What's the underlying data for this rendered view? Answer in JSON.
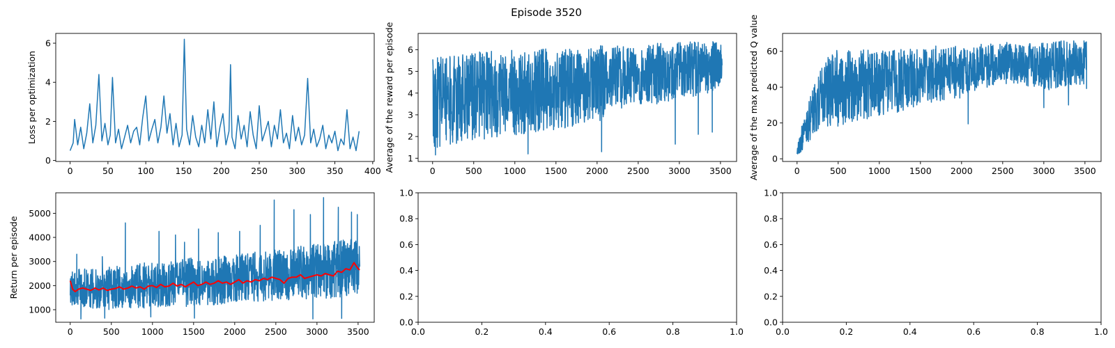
{
  "figure": {
    "suptitle": "Episode 3520"
  },
  "colors": {
    "series": "#1f77b4",
    "rolling_mean": "#ff0000",
    "axes": "#000000"
  },
  "chart_data": [
    {
      "id": "loss",
      "type": "line",
      "title": "",
      "xlabel": "",
      "ylabel": "Loss per optimization",
      "xlim": [
        -19,
        402
      ],
      "ylim": [
        -0.05,
        6.5
      ],
      "xticks": [
        0,
        50,
        100,
        150,
        200,
        250,
        300,
        350,
        400
      ],
      "yticks": [
        0,
        2,
        4,
        6
      ],
      "series": [
        {
          "x": [
            0,
            4,
            6,
            10,
            14,
            18,
            22,
            26,
            30,
            34,
            38,
            42,
            46,
            50,
            53,
            56,
            60,
            64,
            68,
            72,
            76,
            80,
            84,
            88,
            92,
            96,
            100,
            104,
            108,
            112,
            116,
            120,
            124,
            128,
            132,
            136,
            140,
            144,
            148,
            151,
            154,
            158,
            162,
            166,
            170,
            174,
            178,
            182,
            186,
            190,
            194,
            198,
            202,
            206,
            210,
            212,
            214,
            218,
            222,
            226,
            230,
            234,
            238,
            242,
            246,
            250,
            254,
            258,
            262,
            266,
            270,
            274,
            278,
            282,
            286,
            290,
            294,
            298,
            302,
            306,
            310,
            314,
            318,
            322,
            326,
            330,
            334,
            338,
            342,
            346,
            350,
            354,
            358,
            362,
            366,
            370,
            374,
            378,
            382
          ],
          "y": [
            0.5,
            0.9,
            2.1,
            0.8,
            1.7,
            0.6,
            1.4,
            2.9,
            0.9,
            1.8,
            4.4,
            1.0,
            1.9,
            0.8,
            1.3,
            4.25,
            0.9,
            1.6,
            0.6,
            1.2,
            1.8,
            0.9,
            1.5,
            1.7,
            0.8,
            2.2,
            3.3,
            1.0,
            1.6,
            2.1,
            0.9,
            1.7,
            3.3,
            1.4,
            2.4,
            0.8,
            1.9,
            0.7,
            1.3,
            6.2,
            1.6,
            0.8,
            2.3,
            1.2,
            0.7,
            1.8,
            0.9,
            2.6,
            1.1,
            3.0,
            0.7,
            1.7,
            2.4,
            0.8,
            1.5,
            4.9,
            1.2,
            0.6,
            2.3,
            1.1,
            1.8,
            0.7,
            2.5,
            1.3,
            0.6,
            2.8,
            1.0,
            1.5,
            2.0,
            0.7,
            1.8,
            1.1,
            2.6,
            0.9,
            1.4,
            0.6,
            2.3,
            1.0,
            1.7,
            0.8,
            1.3,
            4.2,
            0.9,
            1.6,
            0.7,
            1.1,
            1.8,
            0.6,
            1.3,
            0.9,
            1.5,
            0.5,
            1.1,
            0.8,
            2.6,
            0.6,
            1.2,
            0.5,
            1.5
          ]
        }
      ]
    },
    {
      "id": "avg_reward",
      "type": "line",
      "title": "",
      "xlabel": "",
      "ylabel": "Average of the reward per episode",
      "xlim": [
        -176,
        3696
      ],
      "ylim": [
        0.85,
        6.75
      ],
      "xticks": [
        0,
        500,
        1000,
        1500,
        2000,
        2500,
        3000,
        3500
      ],
      "yticks": [
        1,
        2,
        3,
        4,
        5,
        6
      ],
      "series": [
        {
          "x": [
            0,
            250,
            500,
            750,
            1000,
            1250,
            1500,
            1750,
            2000,
            2250,
            2500,
            2750,
            3000,
            3250,
            3520
          ],
          "y": [
            3.3,
            3.7,
            3.9,
            4.0,
            4.1,
            4.2,
            4.3,
            4.45,
            4.55,
            4.75,
            4.9,
            5.0,
            5.2,
            5.35,
            5.45
          ],
          "band_low": [
            1.4,
            1.6,
            1.8,
            1.9,
            2.0,
            2.2,
            2.3,
            2.5,
            2.6,
            3.2,
            3.5,
            3.4,
            3.7,
            3.9,
            4.2
          ],
          "band_high": [
            5.7,
            5.8,
            5.9,
            5.95,
            6.0,
            6.0,
            6.1,
            6.1,
            6.2,
            6.2,
            6.3,
            6.3,
            6.35,
            6.4,
            6.4
          ],
          "outliers_low": [
            [
              35,
              1.15
            ],
            [
              1160,
              1.2
            ],
            [
              2055,
              1.3
            ],
            [
              2950,
              1.65
            ],
            [
              3230,
              2.1
            ],
            [
              3400,
              2.2
            ]
          ]
        }
      ]
    },
    {
      "id": "max_q",
      "type": "line",
      "title": "",
      "xlabel": "",
      "ylabel": "Average of the max predicted Q value",
      "xlim": [
        -176,
        3696
      ],
      "ylim": [
        -1.5,
        70
      ],
      "xticks": [
        0,
        500,
        1000,
        1500,
        2000,
        2500,
        3000,
        3500
      ],
      "yticks": [
        0,
        20,
        40,
        60
      ],
      "series": [
        {
          "x": [
            0,
            50,
            100,
            150,
            200,
            300,
            400,
            500,
            750,
            1000,
            1250,
            1500,
            1750,
            2000,
            2250,
            2500,
            2750,
            3000,
            3250,
            3520
          ],
          "y": [
            4,
            10,
            15,
            21,
            26,
            33,
            37,
            40,
            43,
            45,
            47,
            49,
            51,
            52,
            55,
            57,
            57,
            58,
            58.5,
            59
          ],
          "band_low": [
            2,
            4,
            7,
            10,
            12,
            15,
            17,
            18,
            21,
            24,
            26,
            30,
            32,
            34,
            39,
            42,
            41,
            38,
            40,
            42
          ],
          "band_high": [
            8,
            18,
            26,
            33,
            40,
            52,
            58,
            61,
            61,
            62,
            62,
            63,
            63,
            63,
            64,
            65,
            65,
            65,
            66,
            66
          ],
          "outliers_low": [
            [
              2080,
              19.5
            ],
            [
              3000,
              28.5
            ],
            [
              3300,
              30
            ],
            [
              3520,
              39
            ]
          ]
        }
      ]
    },
    {
      "id": "return",
      "type": "line",
      "title": "",
      "xlabel": "",
      "ylabel": "Return per episode",
      "xlim": [
        -176,
        3696
      ],
      "ylim": [
        480,
        5850
      ],
      "xticks": [
        0,
        500,
        1000,
        1500,
        2000,
        2500,
        3000,
        3500
      ],
      "yticks": [
        1000,
        2000,
        3000,
        4000,
        5000
      ],
      "series": [
        {
          "x": [
            0,
            250,
            500,
            750,
            1000,
            1250,
            1500,
            1750,
            2000,
            2250,
            2500,
            2750,
            3000,
            3250,
            3520
          ],
          "y": [
            1900,
            1850,
            1850,
            1950,
            1950,
            2000,
            2050,
            2100,
            2150,
            2200,
            2250,
            2300,
            2400,
            2500,
            2650
          ],
          "band_low": [
            1200,
            1050,
            1000,
            1050,
            1050,
            1100,
            1150,
            1200,
            1250,
            1300,
            1350,
            1400,
            1450,
            1500,
            1600
          ],
          "band_high": [
            2700,
            2700,
            2800,
            2900,
            3000,
            3100,
            3200,
            3200,
            3300,
            3400,
            3500,
            3600,
            3800,
            3900,
            4000
          ],
          "spikes": [
            [
              80,
              3300
            ],
            [
              390,
              3200
            ],
            [
              670,
              4600
            ],
            [
              1080,
              4250
            ],
            [
              1280,
              4100
            ],
            [
              1390,
              3800
            ],
            [
              1560,
              4350
            ],
            [
              1800,
              4200
            ],
            [
              2060,
              4250
            ],
            [
              2310,
              4500
            ],
            [
              2480,
              5550
            ],
            [
              2720,
              5150
            ],
            [
              2920,
              4950
            ],
            [
              3080,
              5650
            ],
            [
              3260,
              5250
            ],
            [
              3420,
              5050
            ],
            [
              3490,
              4950
            ]
          ],
          "dips": [
            [
              130,
              620
            ],
            [
              420,
              650
            ],
            [
              980,
              700
            ],
            [
              1510,
              650
            ],
            [
              2950,
              620
            ],
            [
              3300,
              640
            ]
          ]
        },
        {
          "name": "",
          "x": [
            0,
            30,
            60,
            100,
            150,
            200,
            250,
            300,
            350,
            400,
            450,
            500,
            550,
            600,
            650,
            700,
            750,
            800,
            850,
            900,
            950,
            1000,
            1050,
            1100,
            1150,
            1200,
            1250,
            1300,
            1350,
            1400,
            1450,
            1500,
            1550,
            1600,
            1650,
            1700,
            1750,
            1800,
            1850,
            1900,
            1950,
            2000,
            2050,
            2100,
            2150,
            2200,
            2250,
            2300,
            2350,
            2400,
            2450,
            2500,
            2550,
            2600,
            2650,
            2700,
            2750,
            2800,
            2850,
            2900,
            2950,
            3000,
            3050,
            3100,
            3150,
            3200,
            3250,
            3300,
            3350,
            3400,
            3450,
            3500,
            3520
          ],
          "y": [
            2200,
            1850,
            1750,
            1850,
            1900,
            1850,
            1800,
            1900,
            1820,
            1900,
            1800,
            1850,
            1880,
            1950,
            1850,
            1900,
            1980,
            1900,
            1950,
            1850,
            1980,
            2000,
            1920,
            2050,
            1950,
            1980,
            2100,
            1980,
            2050,
            1950,
            2050,
            2150,
            2000,
            2050,
            2150,
            2050,
            2100,
            2200,
            2100,
            2150,
            2050,
            2150,
            2250,
            2100,
            2200,
            2150,
            2250,
            2200,
            2300,
            2250,
            2350,
            2300,
            2250,
            2100,
            2300,
            2350,
            2350,
            2450,
            2300,
            2350,
            2400,
            2450,
            2400,
            2500,
            2450,
            2400,
            2600,
            2550,
            2700,
            2650,
            2950,
            2700,
            2650
          ]
        }
      ]
    },
    {
      "id": "empty_1",
      "type": "line",
      "title": "",
      "xlabel": "",
      "ylabel": "",
      "xlim": [
        0,
        1
      ],
      "ylim": [
        0,
        1
      ],
      "xticks": [
        "0.0",
        "0.2",
        "0.4",
        "0.6",
        "0.8",
        "1.0"
      ],
      "yticks": [
        "0.0",
        "0.2",
        "0.4",
        "0.6",
        "0.8",
        "1.0"
      ],
      "series": []
    },
    {
      "id": "empty_2",
      "type": "line",
      "title": "",
      "xlabel": "",
      "ylabel": "",
      "xlim": [
        0,
        1
      ],
      "ylim": [
        0,
        1
      ],
      "xticks": [
        "0.0",
        "0.2",
        "0.4",
        "0.6",
        "0.8",
        "1.0"
      ],
      "yticks": [
        "0.0",
        "0.2",
        "0.4",
        "0.6",
        "0.8",
        "1.0"
      ],
      "series": []
    }
  ]
}
